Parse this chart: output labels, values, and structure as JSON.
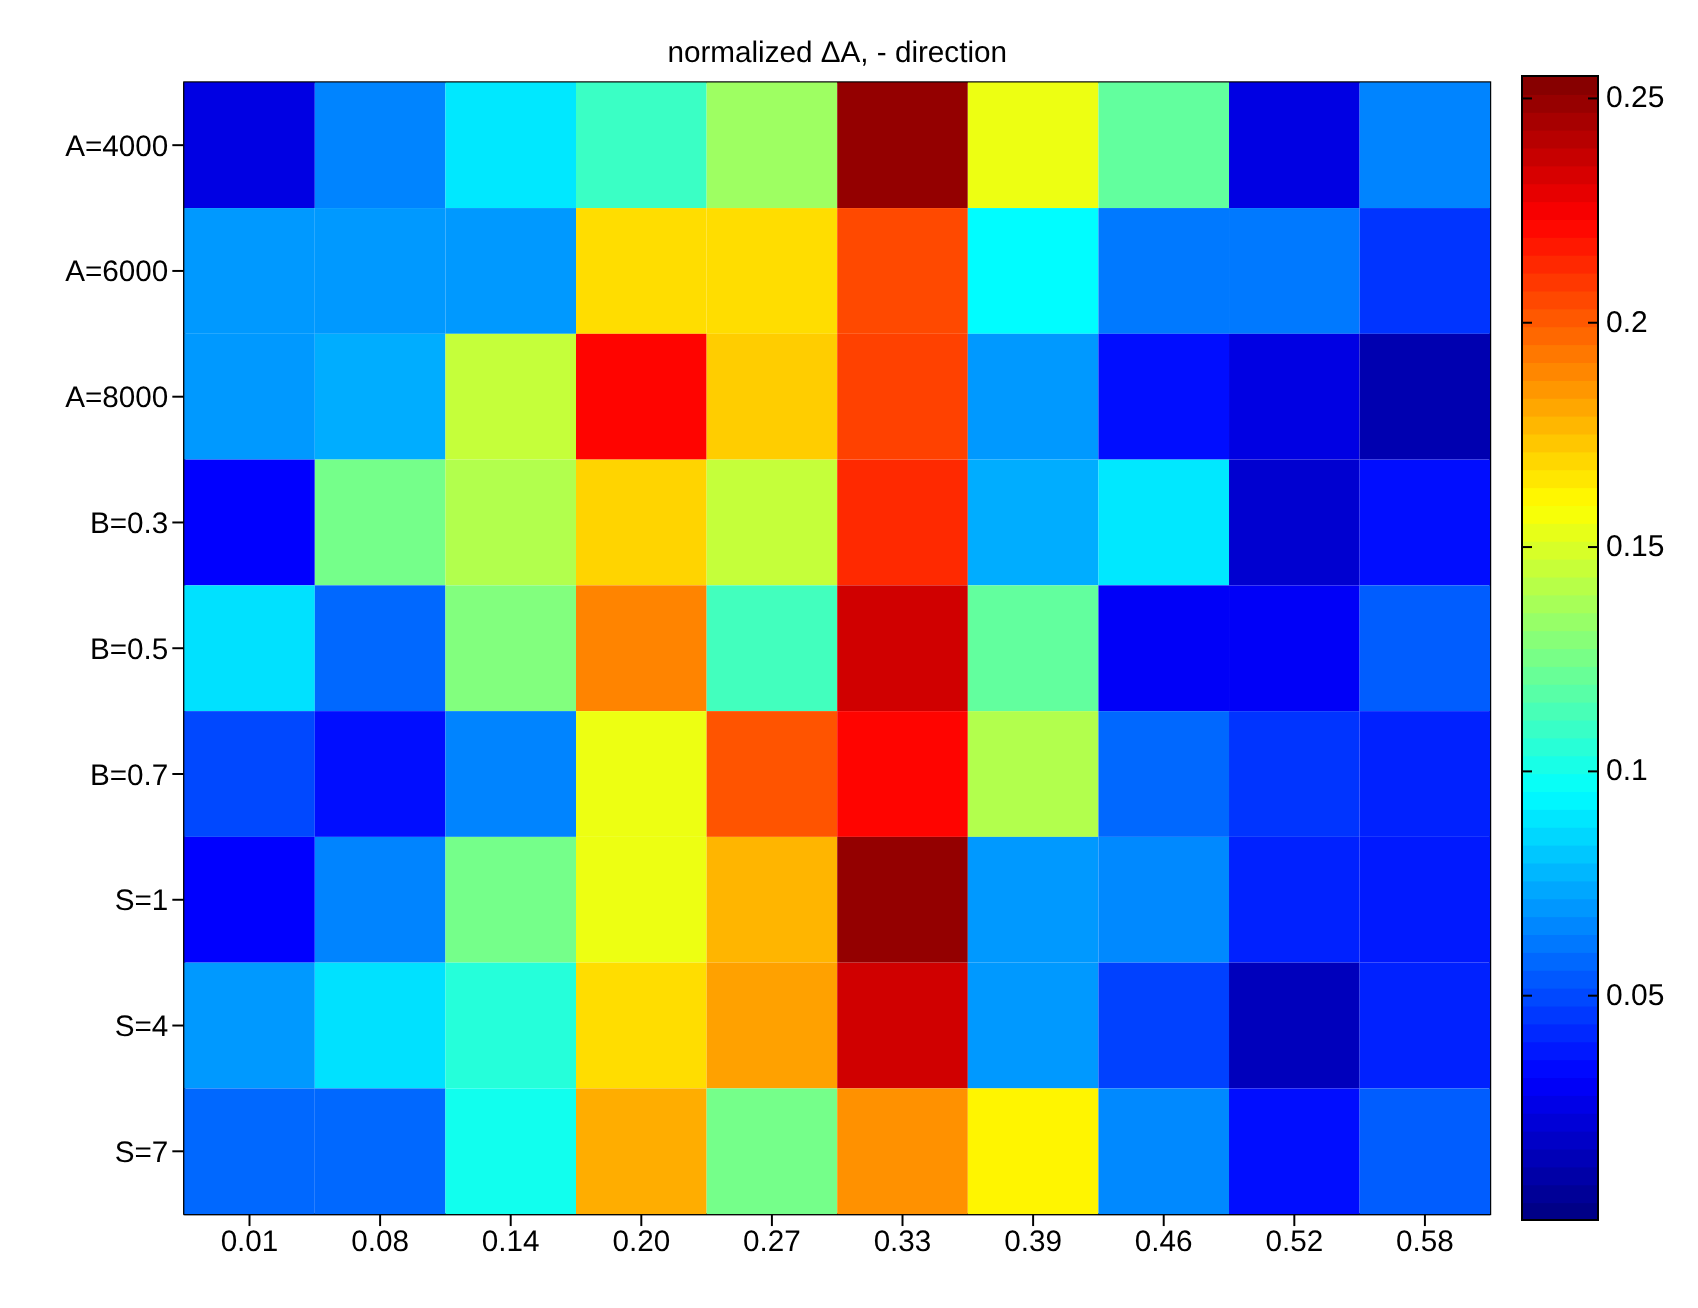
{
  "chart_data": {
    "type": "heatmap",
    "title": "normalized ΔA, - direction",
    "categories": [
      "0.01",
      "0.08",
      "0.14",
      "0.20",
      "0.27",
      "0.33",
      "0.39",
      "0.46",
      "0.52",
      "0.58"
    ],
    "y_categories": [
      "A=4000",
      "A=6000",
      "A=8000",
      "B=0.3",
      "B=0.5",
      "B=0.7",
      "S=1",
      "S=4",
      "S=7"
    ],
    "cells": [
      [
        0.025,
        0.065,
        0.09,
        0.11,
        0.135,
        0.25,
        0.155,
        0.12,
        0.025,
        0.065
      ],
      [
        0.07,
        0.07,
        0.07,
        0.168,
        0.168,
        0.205,
        0.095,
        0.062,
        0.062,
        0.045
      ],
      [
        0.07,
        0.075,
        0.145,
        0.222,
        0.172,
        0.207,
        0.07,
        0.035,
        0.025,
        0.012
      ],
      [
        0.032,
        0.125,
        0.14,
        0.17,
        0.145,
        0.213,
        0.075,
        0.09,
        0.02,
        0.035
      ],
      [
        0.088,
        0.058,
        0.128,
        0.19,
        0.112,
        0.235,
        0.12,
        0.03,
        0.03,
        0.055
      ],
      [
        0.05,
        0.035,
        0.065,
        0.155,
        0.202,
        0.222,
        0.14,
        0.058,
        0.045,
        0.04
      ],
      [
        0.032,
        0.065,
        0.125,
        0.155,
        0.178,
        0.25,
        0.07,
        0.066,
        0.04,
        0.038
      ],
      [
        0.07,
        0.088,
        0.105,
        0.168,
        0.183,
        0.235,
        0.07,
        0.048,
        0.015,
        0.04
      ],
      [
        0.058,
        0.058,
        0.1,
        0.18,
        0.125,
        0.187,
        0.162,
        0.066,
        0.035,
        0.055
      ]
    ],
    "clim": [
      0,
      0.255
    ],
    "cticks": [
      0.05,
      0.1,
      0.15,
      0.2,
      0.25
    ]
  }
}
